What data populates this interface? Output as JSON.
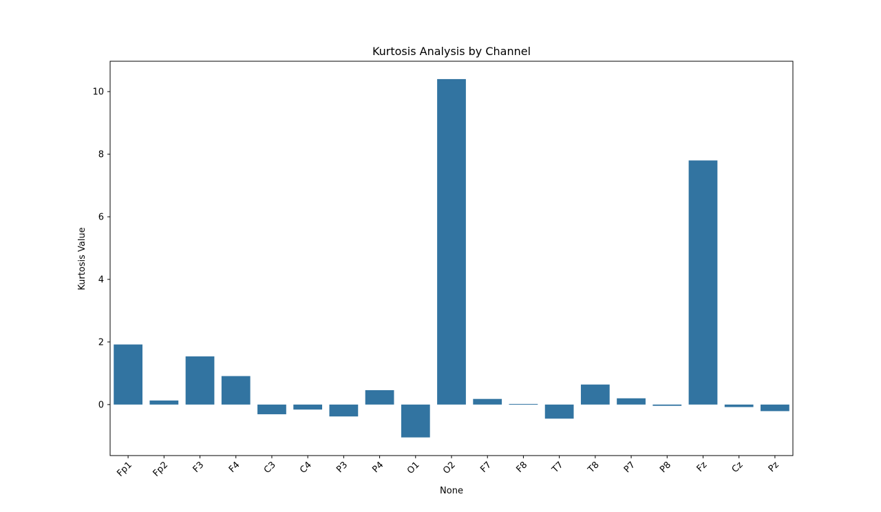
{
  "chart_data": {
    "type": "bar",
    "title": "Kurtosis Analysis by Channel",
    "xlabel": "None",
    "ylabel": "Kurtosis Value",
    "categories": [
      "Fp1",
      "Fp2",
      "F3",
      "F4",
      "C3",
      "C4",
      "P3",
      "P4",
      "O1",
      "O2",
      "F7",
      "F8",
      "T7",
      "T8",
      "P7",
      "P8",
      "Fz",
      "Cz",
      "Pz"
    ],
    "values": [
      1.92,
      0.13,
      1.54,
      0.91,
      -0.31,
      -0.16,
      -0.38,
      0.46,
      -1.05,
      10.4,
      0.18,
      0.02,
      -0.45,
      0.64,
      0.2,
      -0.04,
      7.8,
      -0.08,
      -0.21
    ],
    "ylim": [
      -1.63,
      10.97
    ],
    "yticks": [
      0,
      2,
      4,
      6,
      8,
      10
    ],
    "grid": false,
    "bar_color": "#3274a1"
  }
}
